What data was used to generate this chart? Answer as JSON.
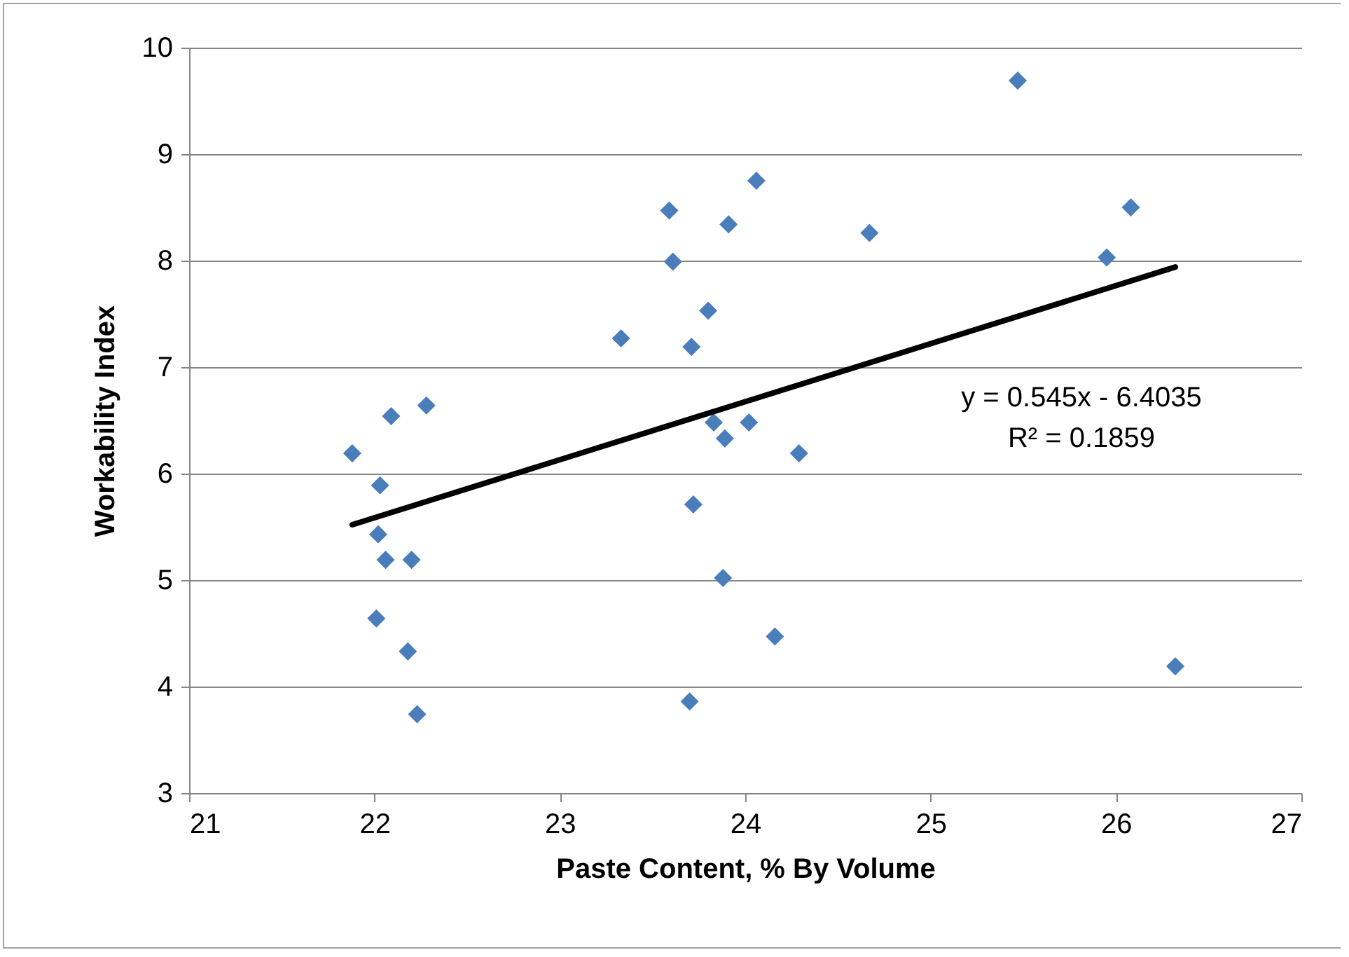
{
  "chart_data": {
    "type": "scatter",
    "xlabel": "Paste Content, % By Volume",
    "ylabel": "Workability Index",
    "xlim": [
      21,
      27
    ],
    "xticks": [
      21,
      22,
      23,
      24,
      25,
      26,
      27
    ],
    "ylim": [
      3,
      10
    ],
    "yticks": [
      3,
      4,
      5,
      6,
      7,
      8,
      9,
      10
    ],
    "grid": "y",
    "annotations": [
      "y = 0.545x - 6.4035",
      "R² = 0.1859"
    ],
    "series": [
      {
        "type": "scatter",
        "marker": "diamond",
        "color": "#4a7ebb",
        "x": [
          21.88,
          22.09,
          22.28,
          22.03,
          22.02,
          22.06,
          22.2,
          22.01,
          22.18,
          22.23,
          23.33,
          23.59,
          23.61,
          23.8,
          23.71,
          23.72,
          23.7,
          23.91,
          24.06,
          24.67,
          25.47,
          25.95,
          26.08,
          26.32,
          23.83,
          23.89,
          24.02,
          24.29,
          23.88,
          24.16
        ],
        "values": [
          6.19,
          6.54,
          6.64,
          5.89,
          5.43,
          5.19,
          5.19,
          4.64,
          4.33,
          3.74,
          7.27,
          8.47,
          7.99,
          7.53,
          7.19,
          5.71,
          3.86,
          8.34,
          8.75,
          8.26,
          9.69,
          8.03,
          8.5,
          4.19,
          6.48,
          6.33,
          6.48,
          6.19,
          5.02,
          4.47
        ]
      },
      {
        "type": "line",
        "color": "#000000",
        "x": [
          21.88,
          26.32
        ],
        "values": [
          5.52,
          7.94
        ]
      }
    ]
  }
}
